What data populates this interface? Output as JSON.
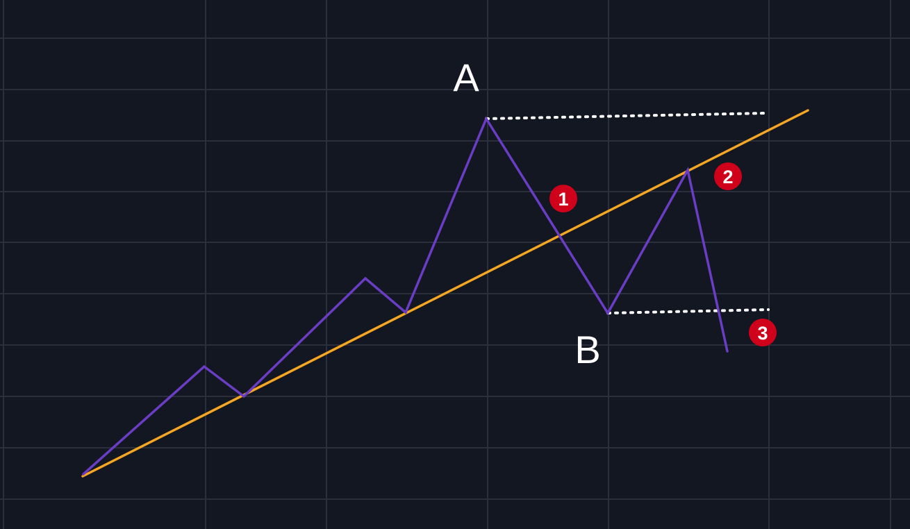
{
  "colors": {
    "background": "#131722",
    "grid": "#2b2f3b",
    "price_line": "#6a3dc4",
    "trendline": "#f5a623",
    "dotted_level": "#ffffff",
    "badge": "#d0021b",
    "text": "#ffffff"
  },
  "labels": {
    "A": "A",
    "B": "B"
  },
  "badges": [
    "1",
    "2",
    "3"
  ]
}
